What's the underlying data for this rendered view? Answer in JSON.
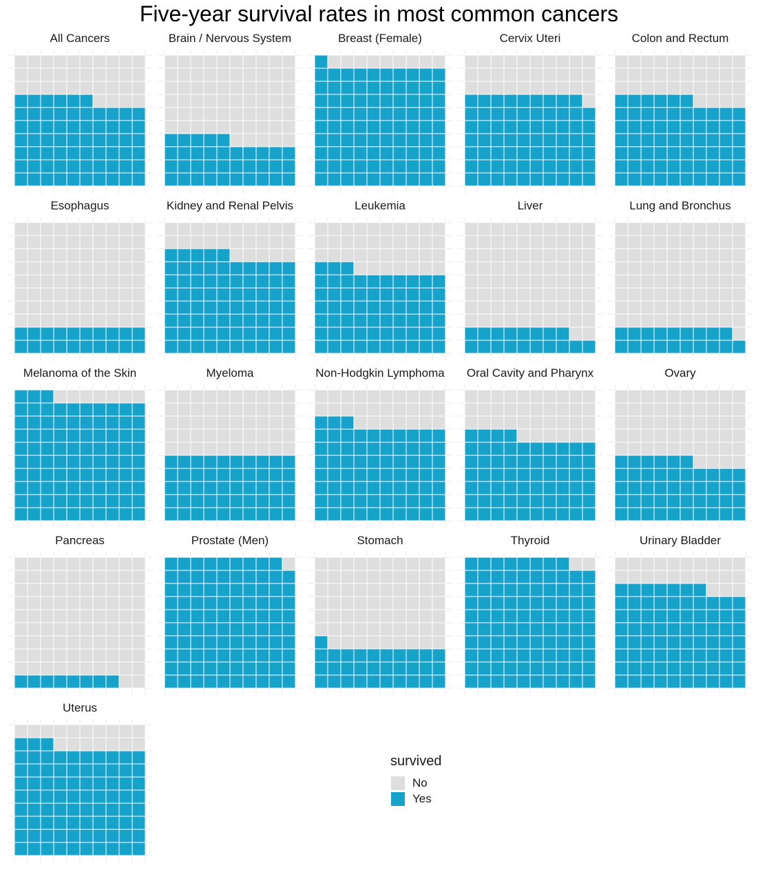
{
  "chart_data": {
    "type": "waffle",
    "title": "Five-year survival rates in most common cancers",
    "grid": "10x10",
    "units_per_panel": 100,
    "colors": {
      "No": "#dedede",
      "Yes": "#17a2c9",
      "panel_grid": "#ebebeb"
    },
    "legend": {
      "title": "survived",
      "entries": [
        "No",
        "Yes"
      ],
      "placement": "bottom-center"
    },
    "panels": [
      {
        "name": "All Cancers",
        "survived": 66
      },
      {
        "name": "Brain / Nervous System",
        "survived": 35
      },
      {
        "name": "Breast (Female)",
        "survived": 91
      },
      {
        "name": "Cervix Uteri",
        "survived": 69
      },
      {
        "name": "Colon and Rectum",
        "survived": 66
      },
      {
        "name": "Esophagus",
        "survived": 20
      },
      {
        "name": "Kidney and Renal Pelvis",
        "survived": 75
      },
      {
        "name": "Leukemia",
        "survived": 63
      },
      {
        "name": "Liver",
        "survived": 18
      },
      {
        "name": "Lung and Bronchus",
        "survived": 19
      },
      {
        "name": "Melanoma of the Skin",
        "survived": 93
      },
      {
        "name": "Myeloma",
        "survived": 50
      },
      {
        "name": "Non-Hodgkin Lymphoma",
        "survived": 73
      },
      {
        "name": "Oral Cavity and Pharynx",
        "survived": 64
      },
      {
        "name": "Ovary",
        "survived": 46
      },
      {
        "name": "Pancreas",
        "survived": 8
      },
      {
        "name": "Prostate (Men)",
        "survived": 99
      },
      {
        "name": "Stomach",
        "survived": 31
      },
      {
        "name": "Thyroid",
        "survived": 98
      },
      {
        "name": "Urinary Bladder",
        "survived": 77
      },
      {
        "name": "Uterus",
        "survived": 83
      }
    ]
  }
}
